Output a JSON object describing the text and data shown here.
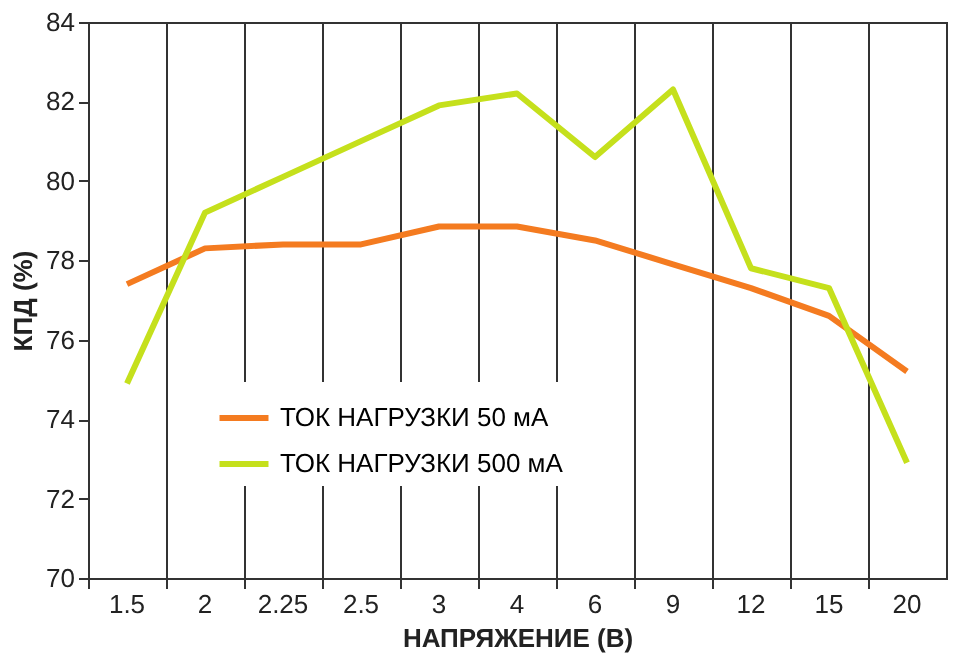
{
  "chart_data": {
    "type": "line",
    "xlabel": "НАПРЯЖЕНИЕ (В)",
    "ylabel": "КПД (%)",
    "categories": [
      "1.5",
      "2",
      "2.25",
      "2.5",
      "3",
      "4",
      "6",
      "9",
      "12",
      "15",
      "20"
    ],
    "series": [
      {
        "name": "ТОК НАГРУЗКИ 50 мА",
        "color": "#f47b20",
        "values": [
          77.4,
          78.3,
          78.4,
          78.4,
          78.85,
          78.85,
          78.5,
          77.9,
          77.3,
          76.6,
          75.2
        ]
      },
      {
        "name": "ТОК НАГРУЗКИ 500 мА",
        "color": "#c5e01c",
        "values": [
          74.9,
          79.2,
          80.1,
          81.0,
          81.9,
          82.2,
          80.6,
          82.3,
          77.8,
          77.3,
          72.9
        ]
      }
    ],
    "ylim": [
      70,
      84
    ],
    "yticks": [
      70,
      72,
      74,
      76,
      78,
      80,
      82,
      84
    ],
    "grid": "x",
    "legend": "bottom left",
    "marker": "none",
    "line_style": "solid"
  }
}
